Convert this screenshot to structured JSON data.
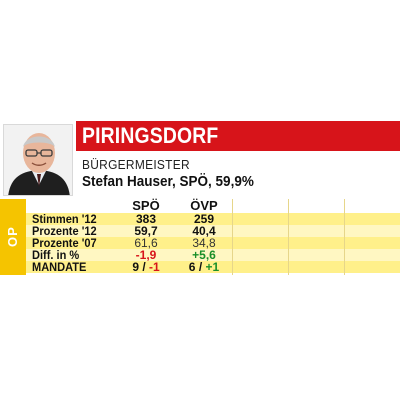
{
  "header": {
    "municipality": "PIRINGSDORF",
    "role": "BÜRGERMEISTER",
    "mayor": "Stefan Hauser, SPÖ, 59,9%"
  },
  "side_label": "OP",
  "columns": [
    "SPÖ",
    "ÖVP"
  ],
  "rows": [
    {
      "label": "Stimmen '12",
      "spo": "383",
      "ovp": "259"
    },
    {
      "label": "Prozente '12",
      "spo": "59,7",
      "ovp": "40,4"
    },
    {
      "label": "Prozente '07",
      "spo": "61,6",
      "ovp": "34,8"
    },
    {
      "label": "Diff. in %",
      "spo": "-1,9",
      "ovp": "+5,6"
    },
    {
      "label": "MANDATE",
      "spo_main": "9",
      "spo_sep": " / ",
      "spo_diff": "-1",
      "ovp_main": "6",
      "ovp_sep": " / ",
      "ovp_diff": "+1"
    }
  ],
  "colors": {
    "brand_red": "#d7141a",
    "accent_yellow": "#f5c400",
    "row_yellow": "#fff08a",
    "row_light": "#fff7c2",
    "negative": "#d7141a",
    "positive": "#1a8f2a"
  },
  "icons": {
    "portrait": "mayor-portrait-photo"
  }
}
